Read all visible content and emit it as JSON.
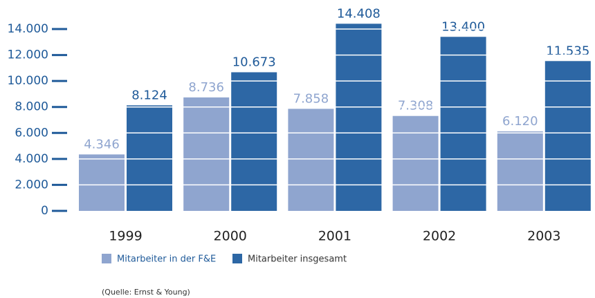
{
  "chart_data": {
    "type": "bar",
    "categories": [
      "1999",
      "2000",
      "2001",
      "2002",
      "2003"
    ],
    "series": [
      {
        "name": "Mitarbeiter in der F&E",
        "color": "#8fa5cf",
        "label_color": "#8fa5cf",
        "values": [
          4346,
          8736,
          7858,
          7308,
          6120
        ],
        "value_labels": [
          "4.346",
          "8.736",
          "7.858",
          "7.308",
          "6.120"
        ]
      },
      {
        "name": "Mitarbeiter insgesamt",
        "color": "#2d67a5",
        "label_color": "#1f5a99",
        "values": [
          8124,
          10673,
          14408,
          13400,
          11535
        ],
        "value_labels": [
          "8.124",
          "10.673",
          "14.408",
          "13.400",
          "11.535"
        ]
      }
    ],
    "ylim": [
      0,
      14000
    ],
    "yticks": [
      0,
      {
        "value": 2000,
        "label": "2.000"
      },
      {
        "value": 4000,
        "label": "4.000"
      },
      {
        "value": 6000,
        "label": "6.000"
      },
      {
        "value": 8000,
        "label": "8.000"
      },
      {
        "value": 10000,
        "label": "10.000"
      },
      {
        "value": 12000,
        "label": "12.000"
      },
      {
        "value": 14000,
        "label": "14.000"
      }
    ],
    "grid": true,
    "source": "(Quelle: Ernst & Young)"
  }
}
